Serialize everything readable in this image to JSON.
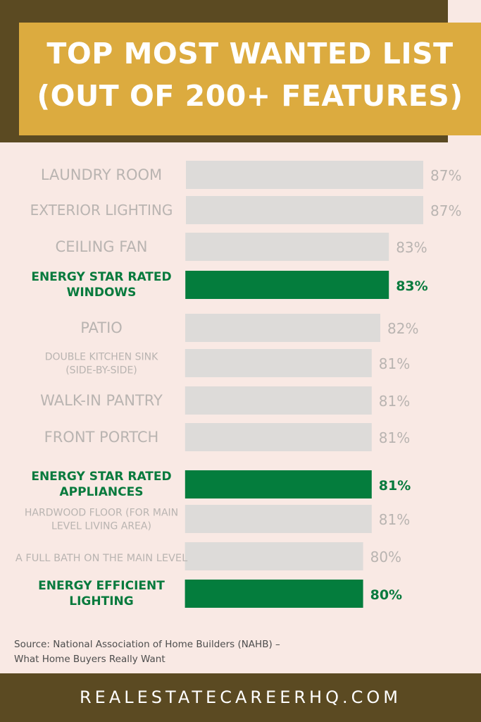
{
  "title": [
    "TOP MOST WANTED LIST",
    "(OUT OF 200+ FEATURES)"
  ],
  "source": [
    "Source: National Association of Home Builders (NAHB) –",
    "What Home Buyers Really Want"
  ],
  "footer": "REALESTATECAREERHQ.COM",
  "colors": {
    "background": "#f9e9e4",
    "header_dark": "#5b4a22",
    "title_box": "#dcab3f",
    "bar_default": "#dddbd9",
    "bar_highlight": "#047d3d",
    "text_default": "#b9b4b1",
    "text_highlight": "#087a3d"
  },
  "chart_data": {
    "type": "bar",
    "orientation": "horizontal",
    "categories": [
      [
        "LAUNDRY ROOM"
      ],
      [
        "EXTERIOR LIGHTING"
      ],
      [
        "CEILING FAN"
      ],
      [
        "ENERGY STAR RATED",
        "WINDOWS"
      ],
      [
        "PATIO"
      ],
      [
        "DOUBLE KITCHEN SINK",
        "(SIDE-BY-SIDE)"
      ],
      [
        "WALK-IN PANTRY"
      ],
      [
        "FRONT PORTCH"
      ],
      [
        "ENERGY STAR RATED",
        "APPLIANCES"
      ],
      [
        "HARDWOOD FLOOR (FOR MAIN",
        "LEVEL LIVING AREA)"
      ],
      [
        "A FULL BATH ON THE MAIN LEVEL"
      ],
      [
        "ENERGY EFFICIENT",
        "LIGHTING"
      ]
    ],
    "values": [
      87,
      87,
      83,
      83,
      82,
      81,
      81,
      81,
      81,
      81,
      80,
      80
    ],
    "value_labels": [
      "87%",
      "87%",
      "83%",
      "83%",
      "82%",
      "81%",
      "81%",
      "81%",
      "81%",
      "81%",
      "80%",
      "80%"
    ],
    "highlighted": [
      false,
      false,
      false,
      true,
      false,
      false,
      false,
      false,
      true,
      false,
      false,
      true
    ],
    "unit": "%",
    "grid": false,
    "legend": "none"
  }
}
